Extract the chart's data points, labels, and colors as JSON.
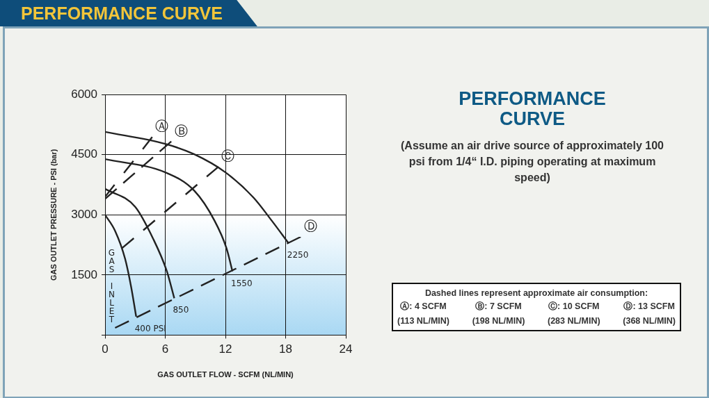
{
  "chart_data": {
    "type": "line",
    "title": "PERFORMANCE CURVE",
    "xlabel": "GAS OUTLET FLOW - SCFM (NL/MIN)",
    "ylabel": "GAS OUTLET PRESSURE - PSI (bar)",
    "xlim": [
      0,
      24
    ],
    "xticks": [
      0,
      6,
      12,
      18,
      24
    ],
    "ylim": [
      0,
      6000
    ],
    "yticks": [
      {
        "value": 0,
        "label": null
      },
      1500,
      3000,
      4500,
      6000
    ],
    "grid": true,
    "legend": false,
    "marker": "none",
    "series": [
      {
        "color": "#222222",
        "x": [
          0,
          1,
          2,
          2.6,
          3.1
        ],
        "values": [
          3000,
          2600,
          1900,
          1200,
          460
        ]
      },
      {
        "color": "#222222",
        "x": [
          0,
          3,
          4.8,
          6.15,
          6.9
        ],
        "values": [
          3650,
          3200,
          2400,
          1600,
          920
        ]
      },
      {
        "color": "#222222",
        "x": [
          0,
          6,
          8.9,
          10.9,
          12.1,
          12.7
        ],
        "values": [
          4390,
          4060,
          3600,
          2860,
          2170,
          1590
        ]
      },
      {
        "color": "#222222",
        "x": [
          0,
          6,
          8.9,
          12,
          14.8,
          16.6,
          18.3
        ],
        "values": [
          5070,
          4770,
          4510,
          4060,
          3430,
          2860,
          2290
        ]
      },
      {
        "color": "#222222",
        "line_style": "dashed",
        "x": [
          0,
          4.7
        ],
        "values": [
          3450,
          4940
        ]
      },
      {
        "color": "#222222",
        "line_style": "dashed",
        "x": [
          0,
          6.6
        ],
        "values": [
          3400,
          4830
        ]
      },
      {
        "color": "#222222",
        "line_style": "dashed",
        "x": [
          1.7,
          11.3
        ],
        "values": [
          2170,
          4200
        ]
      },
      {
        "color": "#222222",
        "line_style": "dashed",
        "x": [
          1,
          19.5
        ],
        "values": [
          180,
          2450
        ]
      }
    ],
    "annotations": [
      "PERFORMANCE CURVE",
      "(Assume an air drive source of approximately 100 psi from 1/4“ I.D. piping operating at maximum speed)",
      "Dashed lines represent approximate air consumption:",
      "Ⓐ: 4 SCFM",
      "Ⓑ: 7 SCFM",
      "Ⓒ: 10 SCFM",
      "Ⓓ: 13 SCFM",
      "(113 NL/MIN)",
      "(198 NL/MIN)",
      "(283 NL/MIN)",
      "(368 NL/MIN)",
      {
        "text": "400 PSI",
        "x": 3.1,
        "y": 460
      },
      {
        "text": "850",
        "x": 6.9,
        "y": 920
      },
      {
        "text": "1550",
        "x": 12.7,
        "y": 1590
      },
      {
        "text": "2250",
        "x": 18.3,
        "y": 2290
      },
      {
        "text": "Ⓐ",
        "x": 4.7,
        "y": 4940
      },
      {
        "text": "Ⓑ",
        "x": 6.6,
        "y": 4830
      },
      {
        "text": "Ⓒ",
        "x": 11.3,
        "y": 4200
      },
      {
        "text": "Ⓓ",
        "x": 19.5,
        "y": 2450
      },
      {
        "text": "GAS INLET",
        "x": 2.6,
        "y": 1200
      }
    ]
  }
}
